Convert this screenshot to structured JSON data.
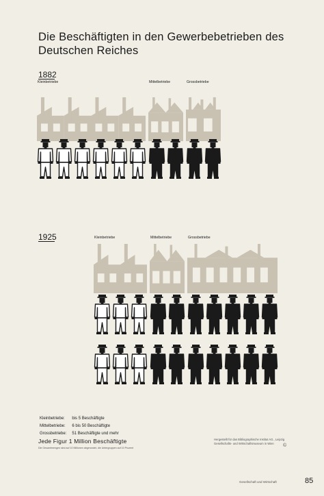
{
  "title": "Die Beschäftigten in den Gewerbebetrieben des Deutschen Reiches",
  "colors": {
    "background": "#f1eee6",
    "factory": "#c9c1b1",
    "ink": "#1a1a1a",
    "worker_outline_fill": "#ffffff"
  },
  "icons": {
    "worker": "worker-figure-icon",
    "factory": "factory-silhouette-icon"
  },
  "chart_data": {
    "type": "pictogram",
    "unit": "Jede Figur 1 Million Beschäftigte",
    "categories": [
      "Kleinbetriebe",
      "Mittelbetriebe",
      "Grossbetriebe"
    ],
    "series": [
      {
        "name": "1882",
        "values": [
          6,
          2,
          2
        ]
      },
      {
        "name": "1925",
        "values": [
          6,
          4,
          10
        ]
      }
    ]
  },
  "legend": [
    {
      "label": "Kleinbetriebe:",
      "value": "bis 5 Beschäftigte"
    },
    {
      "label": "Mittelbetriebe:",
      "value": "6 bis 50 Beschäftigte"
    },
    {
      "label": "Grossbetriebe:",
      "value": "51 Beschäftigte und mehr"
    }
  ],
  "note": "Jede Figur 1 Million Beschäftigte",
  "footnote": "Die Gesamtmengen sind auf 10 Millionen abgerundet, die Untergruppen auf 10 Prozent",
  "publisher_lines": [
    "Hergestellt für das Bibliographische Institut AG., Leipzig",
    "Gesellschafts- und Wirtschaftsmuseum in Wien"
  ],
  "copyright": "©",
  "footer_text": "Gesellschaft und Wirtschaft",
  "page_number": "85"
}
